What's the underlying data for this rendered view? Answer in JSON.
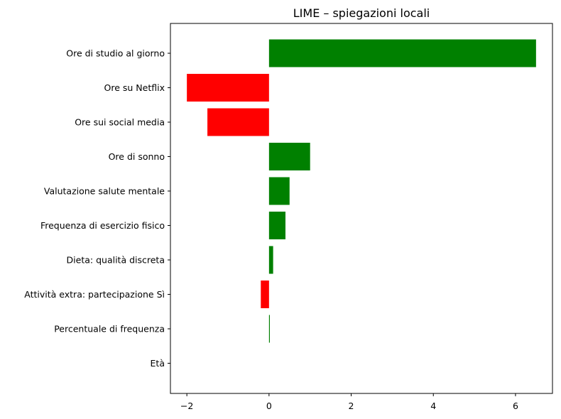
{
  "chart_data": {
    "type": "bar",
    "orientation": "horizontal",
    "title": "LIME – spiegazioni locali",
    "xlabel": "",
    "ylabel": "",
    "categories": [
      "Ore di studio al giorno",
      "Ore su Netflix",
      "Ore sui social media",
      "Ore di sonno",
      "Valutazione salute mentale",
      "Frequenza di esercizio fisico",
      "Dieta: qualità discreta",
      "Attività extra: partecipazione Sì",
      "Percentuale di frequenza",
      "Età"
    ],
    "values": [
      6.5,
      -2.0,
      -1.5,
      1.0,
      0.5,
      0.4,
      0.1,
      -0.2,
      0.02,
      0.0
    ],
    "xlim": [
      -2.4,
      6.9
    ],
    "xticks": [
      -2,
      0,
      2,
      4,
      6
    ],
    "xtick_labels": [
      "−2",
      "0",
      "2",
      "4",
      "6"
    ],
    "positive_color": "#008000",
    "negative_color": "#ff0000",
    "grid": false,
    "legend": "none"
  }
}
